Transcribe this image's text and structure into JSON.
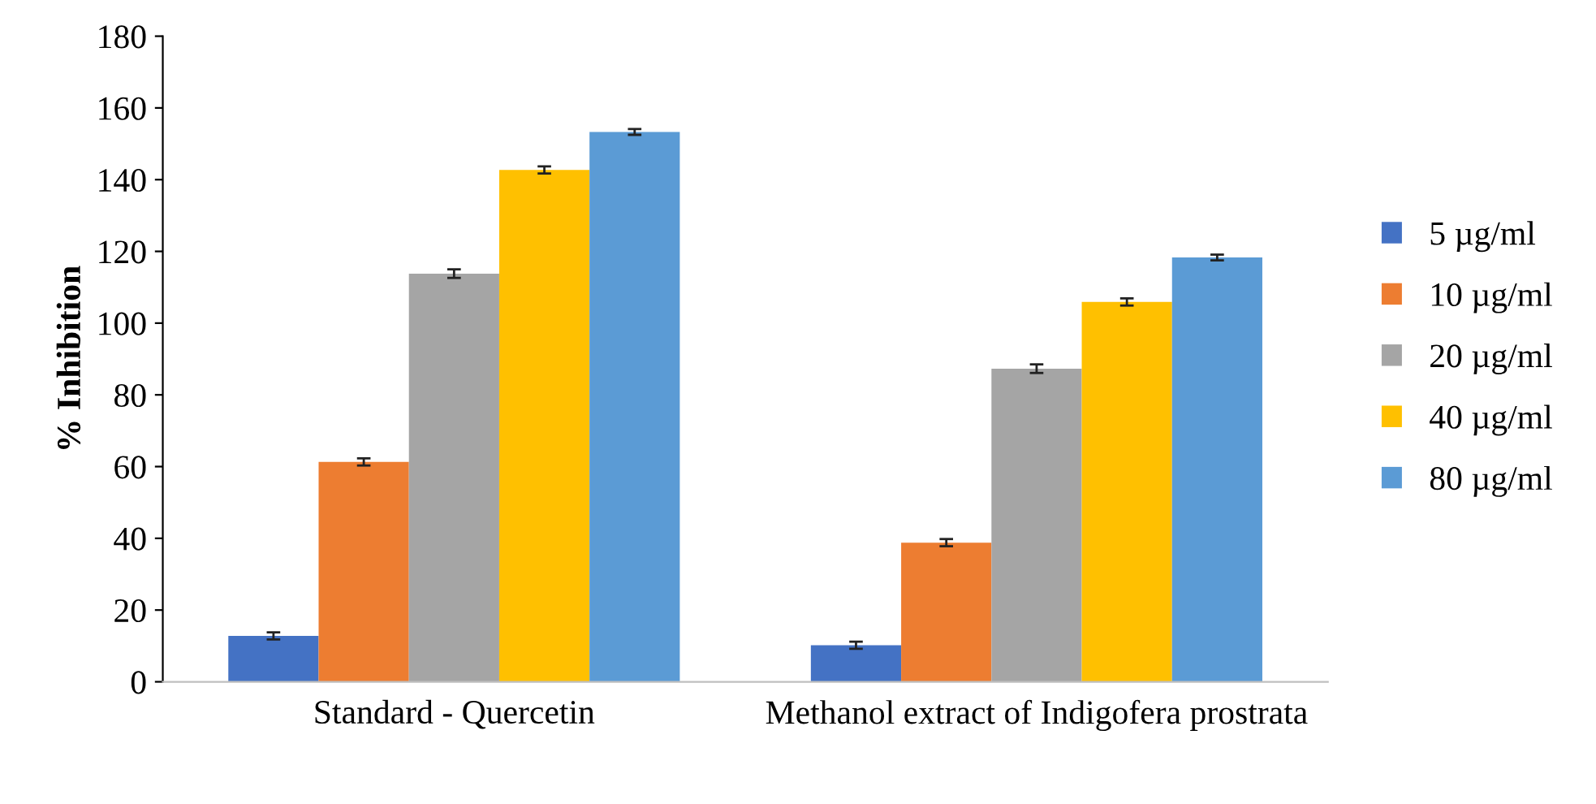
{
  "chart_data": {
    "type": "bar",
    "ylabel": "% Inhibition",
    "categories": [
      "Standard - Quercetin",
      "Methanol extract of Indigofera prostrata"
    ],
    "series": [
      {
        "name": "5 µg/ml",
        "color": "#4472c4",
        "values": [
          12.8,
          10.2
        ],
        "errors": [
          1,
          1
        ]
      },
      {
        "name": "10 µg/ml",
        "color": "#ed7d31",
        "values": [
          61.3,
          38.8
        ],
        "errors": [
          1,
          1
        ]
      },
      {
        "name": "20 µg/ml",
        "color": "#a5a5a5",
        "values": [
          113.8,
          87.3
        ],
        "errors": [
          1.2,
          1.2
        ]
      },
      {
        "name": "40 µg/ml",
        "color": "#ffc000",
        "values": [
          142.7,
          105.9
        ],
        "errors": [
          1,
          1
        ]
      },
      {
        "name": "80 µg/ml",
        "color": "#5b9bd5",
        "values": [
          153.3,
          118.3
        ],
        "errors": [
          0.8,
          0.8
        ]
      }
    ],
    "ylim": [
      0,
      180
    ],
    "yticks": [
      0,
      20,
      40,
      60,
      80,
      100,
      120,
      140,
      160,
      180
    ],
    "grid": false,
    "legend": "right"
  }
}
